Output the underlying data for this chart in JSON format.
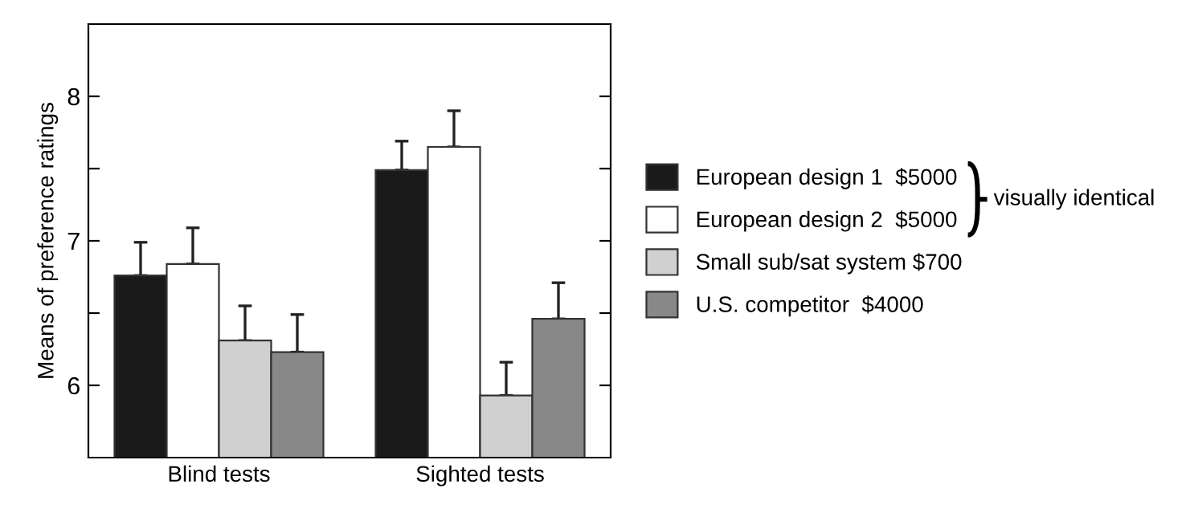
{
  "chart_data": {
    "type": "bar",
    "ylabel": "Means of preference ratings",
    "categories": [
      "Blind tests",
      "Sighted tests"
    ],
    "series": [
      {
        "name": "European design 1  $5000",
        "color": "#1a1a1a",
        "values": [
          6.76,
          7.49
        ],
        "errors": [
          [
            6.76,
            6.99
          ],
          [
            7.49,
            7.69
          ]
        ]
      },
      {
        "name": "European design 2  $5000",
        "color": "#ffffff",
        "values": [
          6.84,
          7.65
        ],
        "errors": [
          [
            6.84,
            7.09
          ],
          [
            7.65,
            7.9
          ]
        ]
      },
      {
        "name": "Small sub/sat system $700",
        "color": "#d0d0d0",
        "values": [
          6.31,
          5.93
        ],
        "errors": [
          [
            6.31,
            6.55
          ],
          [
            5.93,
            6.16
          ]
        ]
      },
      {
        "name": "U.S. competitor  $4000",
        "color": "#888888",
        "values": [
          6.23,
          6.46
        ],
        "errors": [
          [
            6.23,
            6.49
          ],
          [
            6.46,
            6.71
          ]
        ]
      }
    ],
    "ylim": [
      5.5,
      8.5
    ],
    "yticks": [
      6,
      {
        "value": 6.5,
        "label": null
      },
      7,
      {
        "value": 7.5,
        "label": null
      },
      8
    ],
    "annotations": [
      "visually identical"
    ],
    "legend": "right",
    "grid": false
  }
}
